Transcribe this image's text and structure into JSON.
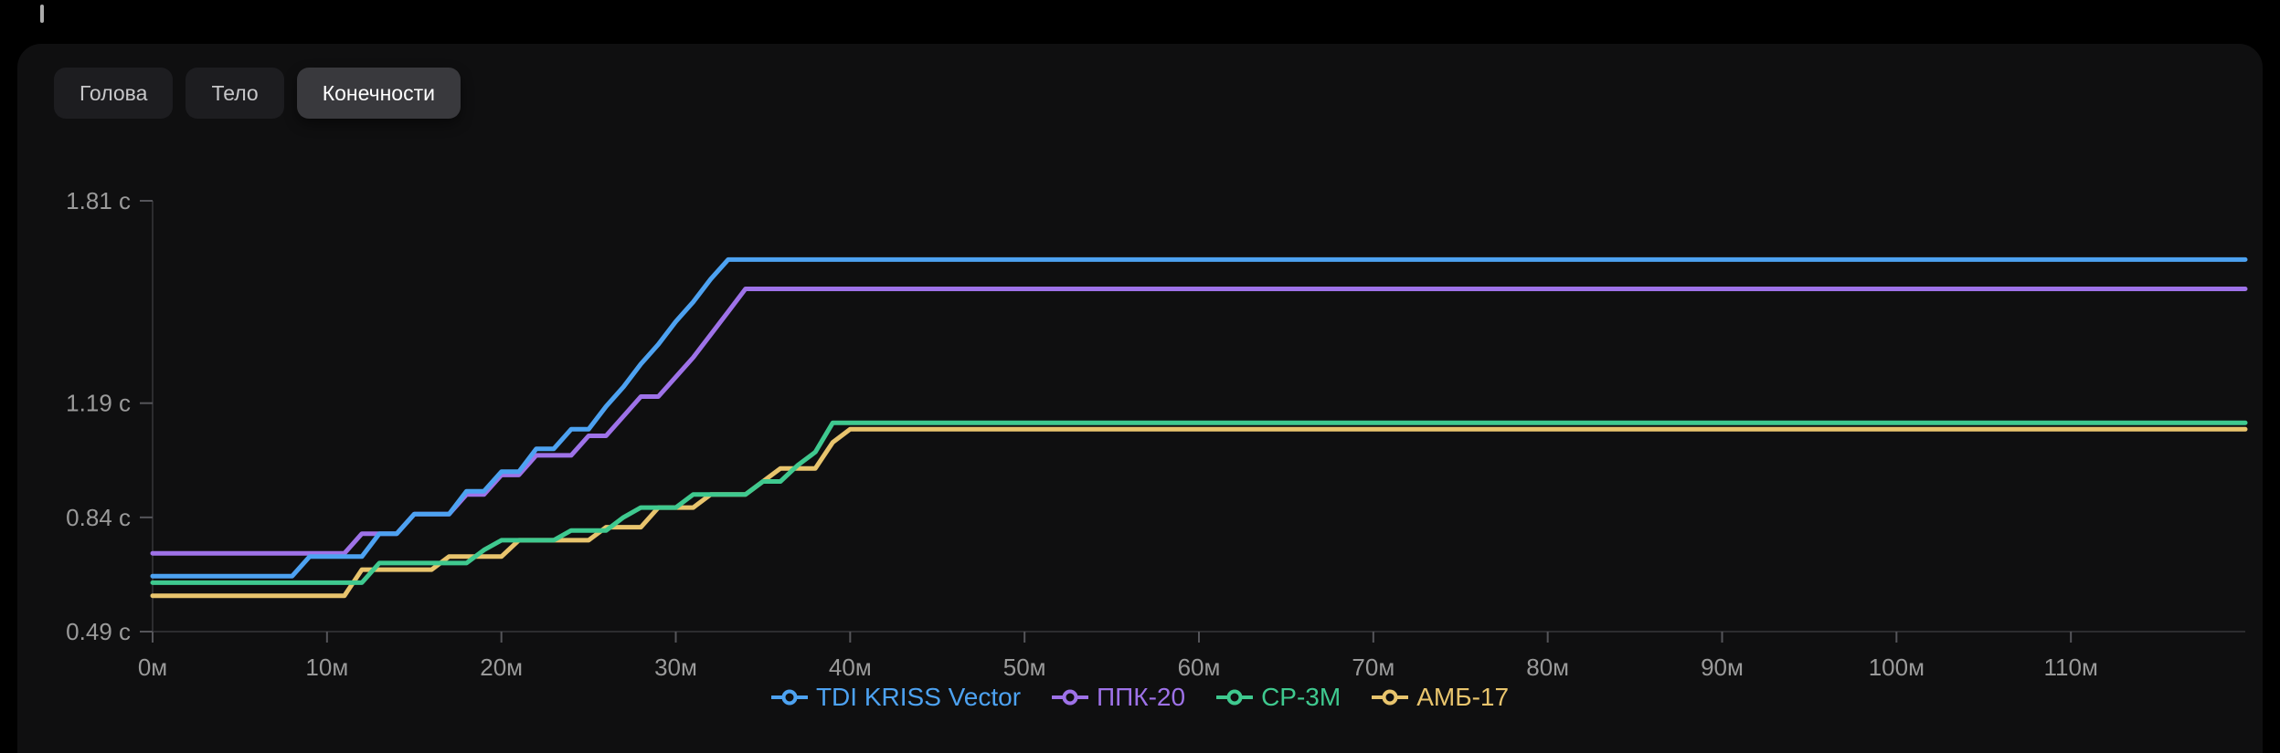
{
  "theme": {
    "page_bg": "#000000",
    "panel_bg": "#0f0f10",
    "axis_text": "#9a9a9a",
    "axis_line": "#2c2c2f",
    "tick_color": "#55555a",
    "tab_inactive_bg": "#1d1d20",
    "tab_inactive_text": "#c7c7c9",
    "tab_active_bg": "#39393d",
    "tab_active_text": "#ffffff"
  },
  "tabs": [
    {
      "id": "head",
      "label": "Голова",
      "active": false
    },
    {
      "id": "body",
      "label": "Тело",
      "active": false
    },
    {
      "id": "limbs",
      "label": "Конечности",
      "active": true
    }
  ],
  "chart_data": {
    "type": "line",
    "title": "",
    "xlabel": "",
    "ylabel": "",
    "x_unit": "м",
    "y_unit": "с",
    "grid": false,
    "legend_position": "bottom",
    "x_domain": [
      0,
      120
    ],
    "y_domain": [
      0.49,
      1.81
    ],
    "x_ticks": [
      "0м",
      "10м",
      "20м",
      "30м",
      "40м",
      "50м",
      "60м",
      "70м",
      "80м",
      "90м",
      "100м",
      "110м"
    ],
    "x_tick_values": [
      0,
      10,
      20,
      30,
      40,
      50,
      60,
      70,
      80,
      90,
      100,
      110
    ],
    "y_ticks": [
      "1.81 с",
      "1.19 с",
      "0.84 с",
      "0.49 с"
    ],
    "y_tick_values": [
      1.81,
      1.19,
      0.84,
      0.49
    ],
    "series": [
      {
        "id": "tdi-kriss-vector",
        "name": "TDI KRISS Vector",
        "color": "#4da2f1",
        "points": [
          [
            0,
            0.66
          ],
          [
            8,
            0.66
          ],
          [
            9,
            0.72
          ],
          [
            12,
            0.72
          ],
          [
            13,
            0.79
          ],
          [
            14,
            0.79
          ],
          [
            15,
            0.85
          ],
          [
            17,
            0.85
          ],
          [
            18,
            0.92
          ],
          [
            19,
            0.92
          ],
          [
            20,
            0.98
          ],
          [
            21,
            0.98
          ],
          [
            22,
            1.05
          ],
          [
            23,
            1.05
          ],
          [
            24,
            1.11
          ],
          [
            25,
            1.11
          ],
          [
            26,
            1.18
          ],
          [
            27,
            1.24
          ],
          [
            28,
            1.31
          ],
          [
            29,
            1.37
          ],
          [
            30,
            1.44
          ],
          [
            31,
            1.5
          ],
          [
            32,
            1.57
          ],
          [
            33,
            1.63
          ],
          [
            120,
            1.63
          ]
        ]
      },
      {
        "id": "ppk-20",
        "name": "ППК-20",
        "color": "#9e72e8",
        "points": [
          [
            0,
            0.73
          ],
          [
            11,
            0.73
          ],
          [
            12,
            0.79
          ],
          [
            14,
            0.79
          ],
          [
            15,
            0.85
          ],
          [
            17,
            0.85
          ],
          [
            18,
            0.91
          ],
          [
            19,
            0.91
          ],
          [
            20,
            0.97
          ],
          [
            21,
            0.97
          ],
          [
            22,
            1.03
          ],
          [
            24,
            1.03
          ],
          [
            25,
            1.09
          ],
          [
            26,
            1.09
          ],
          [
            27,
            1.15
          ],
          [
            28,
            1.21
          ],
          [
            29,
            1.21
          ],
          [
            30,
            1.27
          ],
          [
            31,
            1.33
          ],
          [
            32,
            1.4
          ],
          [
            33,
            1.47
          ],
          [
            34,
            1.54
          ],
          [
            120,
            1.54
          ]
        ]
      },
      {
        "id": "sr-3m",
        "name": "СР-3М",
        "color": "#3fc98f",
        "points": [
          [
            0,
            0.64
          ],
          [
            12,
            0.64
          ],
          [
            13,
            0.7
          ],
          [
            18,
            0.7
          ],
          [
            19,
            0.74
          ],
          [
            20,
            0.77
          ],
          [
            23,
            0.77
          ],
          [
            24,
            0.8
          ],
          [
            26,
            0.8
          ],
          [
            27,
            0.84
          ],
          [
            28,
            0.87
          ],
          [
            30,
            0.87
          ],
          [
            31,
            0.91
          ],
          [
            34,
            0.91
          ],
          [
            35,
            0.95
          ],
          [
            36,
            0.95
          ],
          [
            37,
            1.0
          ],
          [
            38,
            1.04
          ],
          [
            39,
            1.13
          ],
          [
            120,
            1.13
          ]
        ]
      },
      {
        "id": "amb-17",
        "name": "АМБ-17",
        "color": "#e8c46d",
        "points": [
          [
            0,
            0.6
          ],
          [
            11,
            0.6
          ],
          [
            12,
            0.68
          ],
          [
            16,
            0.68
          ],
          [
            17,
            0.72
          ],
          [
            20,
            0.72
          ],
          [
            21,
            0.77
          ],
          [
            25,
            0.77
          ],
          [
            26,
            0.81
          ],
          [
            28,
            0.81
          ],
          [
            29,
            0.87
          ],
          [
            31,
            0.87
          ],
          [
            32,
            0.91
          ],
          [
            34,
            0.91
          ],
          [
            35,
            0.95
          ],
          [
            36,
            0.99
          ],
          [
            38,
            0.99
          ],
          [
            39,
            1.07
          ],
          [
            40,
            1.11
          ],
          [
            120,
            1.11
          ]
        ]
      }
    ]
  }
}
